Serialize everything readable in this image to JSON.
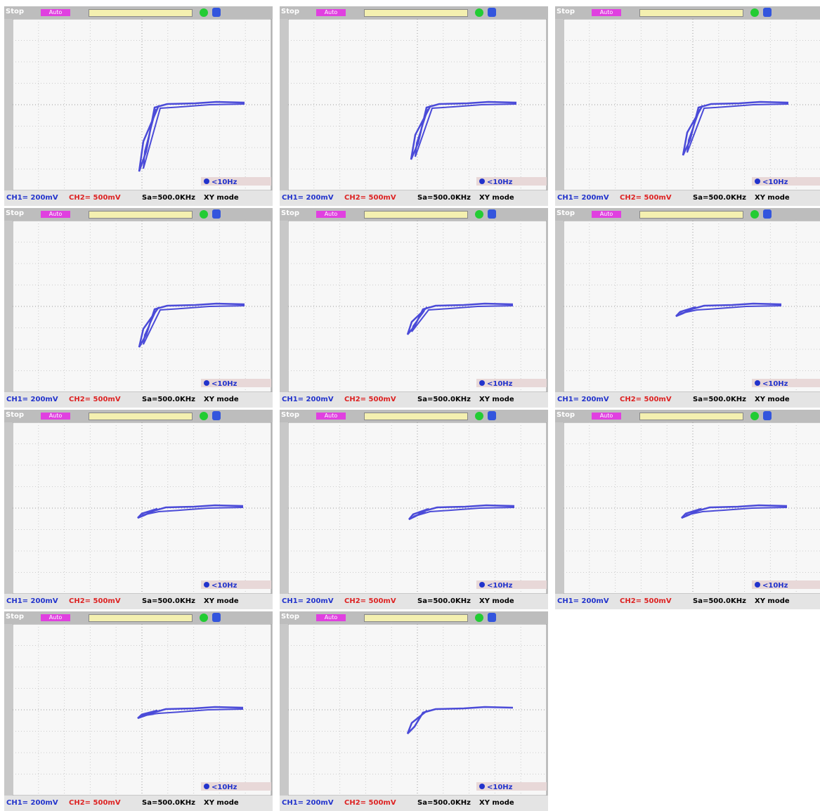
{
  "panels": [
    {
      "status": "Stop",
      "trigger": "Auto",
      "frequency": "<10Hz",
      "ch1": "CH1= 200mV",
      "ch2": "CH2= 500mV",
      "sample_rate": "Sa=500.0KHz",
      "mode": "XY mode"
    },
    {
      "status": "Stop",
      "trigger": "Auto",
      "frequency": "<10Hz",
      "ch1": "CH1= 200mV",
      "ch2": "CH2= 500mV",
      "sample_rate": "Sa=500.0KHz",
      "mode": "XY mode"
    },
    {
      "status": "Stop",
      "trigger": "Auto",
      "frequency": "<10Hz",
      "ch1": "CH1= 200mV",
      "ch2": "CH2= 500mV",
      "sample_rate": "Sa=500.0KHz",
      "mode": "XY mode"
    },
    {
      "status": "Stop",
      "trigger": "Auto",
      "frequency": "<10Hz",
      "ch1": "CH1= 200mV",
      "ch2": "CH2= 500mV",
      "sample_rate": "Sa=500.0KHz",
      "mode": "XY mode"
    },
    {
      "status": "Stop",
      "trigger": "Auto",
      "frequency": "<10Hz",
      "ch1": "CH1= 200mV",
      "ch2": "CH2= 500mV",
      "sample_rate": "Sa=500.0KHz",
      "mode": "XY mode"
    },
    {
      "status": "Stop",
      "trigger": "Auto",
      "frequency": "<10Hz",
      "ch1": "CH1= 200mV",
      "ch2": "CH2= 500mV",
      "sample_rate": "Sa=500.0KHz",
      "mode": "XY mode"
    },
    {
      "status": "Stop",
      "trigger": "Auto",
      "frequency": "<10Hz",
      "ch1": "CH1= 200mV",
      "ch2": "CH2= 500mV",
      "sample_rate": "Sa=500.0KHz",
      "mode": "XY mode"
    },
    {
      "status": "Stop",
      "trigger": "Auto",
      "frequency": "<10Hz",
      "ch1": "CH1= 200mV",
      "ch2": "CH2= 500mV",
      "sample_rate": "Sa=500.0KHz",
      "mode": "XY mode"
    },
    {
      "status": "Stop",
      "trigger": "Auto",
      "frequency": "<10Hz",
      "ch1": "CH1= 200mV",
      "ch2": "CH2= 500mV",
      "sample_rate": "Sa=500.0KHz",
      "mode": "XY mode"
    },
    {
      "status": "Stop",
      "trigger": "Auto",
      "frequency": "<10Hz",
      "ch1": "CH1= 200mV",
      "ch2": "CH2= 500mV",
      "sample_rate": "Sa=500.0KHz",
      "mode": "XY mode"
    },
    {
      "status": "Stop",
      "trigger": "Auto",
      "frequency": "<10Hz",
      "ch1": "CH1= 200mV",
      "ch2": "CH2= 500mV",
      "sample_rate": "Sa=500.0KHz",
      "mode": "XY mode"
    }
  ]
}
